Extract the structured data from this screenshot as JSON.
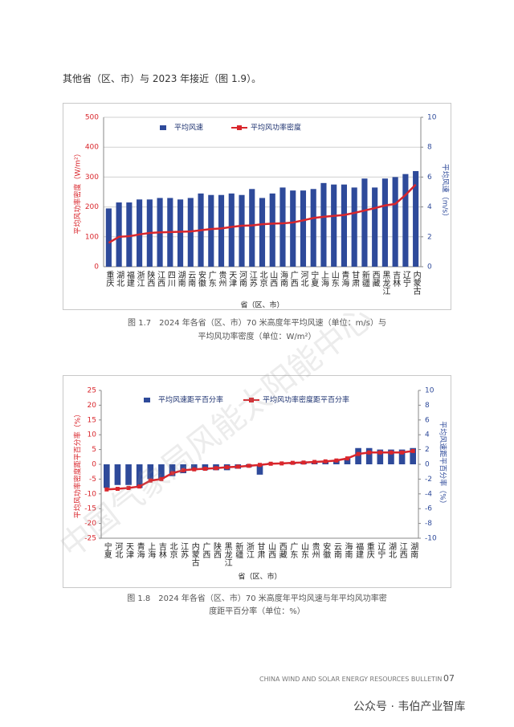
{
  "document": {
    "intro": "其他省（区、市）与 2023 年接近（图 1.9）。",
    "figures": [
      {
        "caption": [
          "图 1.7　2024 年各省（区、市）70 米高度年平均风速（单位：m/s）与",
          "平均风功率密度（单位：W/m²）"
        ]
      },
      {
        "caption": [
          "图 1.8　2024 年各省（区、市）70 米高度年平均风速与年平均风功率密",
          "度距平百分率（单位：%）"
        ]
      }
    ],
    "footer": {
      "bulletin": "CHINA WIND AND SOLAR ENERGY RESOURCES BULLETIN",
      "page": "07"
    },
    "watermark": "中国气象局风能太阳能中心",
    "overlay": "公众号 · 韦伯产业智库"
  },
  "chart_data": [
    {
      "type": "combo",
      "x_label": "省（区、市）",
      "y_label": "平均风功率密度（W/m²）",
      "y2_label": "平均风速（m/s）",
      "grid": true,
      "categories": [
        "重庆",
        "湖北",
        "福建",
        "浙江",
        "陕西",
        "江西",
        "四川",
        "湖南",
        "云南",
        "安徽",
        "广东",
        "贵州",
        "天津",
        "河南",
        "江苏",
        "北京",
        "山西",
        "海南",
        "广西",
        "河北",
        "宁夏",
        "上海",
        "山东",
        "青海",
        "甘肃",
        "新疆",
        "西藏",
        "黑龙江",
        "吉林",
        "辽宁",
        "内蒙古"
      ],
      "series": [
        {
          "name": "平均风速",
          "type": "bar",
          "axis": "y2",
          "color": "#2e4a9a",
          "values": [
            3.9,
            4.3,
            4.3,
            4.5,
            4.5,
            4.6,
            4.6,
            4.5,
            4.6,
            4.9,
            4.8,
            4.8,
            4.9,
            4.8,
            5.2,
            4.6,
            4.9,
            5.3,
            5.1,
            5.1,
            5.2,
            5.6,
            5.5,
            5.5,
            5.3,
            5.9,
            5.3,
            5.9,
            6.0,
            6.2,
            6.4
          ]
        },
        {
          "name": "平均风功率密度",
          "type": "line",
          "color": "#d9262c",
          "values": [
            80,
            100,
            102,
            108,
            113,
            115,
            116,
            117,
            118,
            122,
            126,
            128,
            133,
            137,
            138,
            142,
            144,
            145,
            148,
            155,
            163,
            167,
            170,
            173,
            180,
            188,
            196,
            205,
            210,
            240,
            275
          ]
        }
      ],
      "ylim": [
        0,
        500
      ],
      "yticks": [
        0,
        100,
        200,
        300,
        400,
        500
      ],
      "y2lim": [
        0,
        10
      ],
      "y2ticks": [
        0,
        2,
        4,
        6,
        8,
        10
      ]
    },
    {
      "type": "combo",
      "x_label": "省（区、市）",
      "y_label": "平均风功率密度距平百分率（%）",
      "y2_label": "平均风速距平百分率（%）",
      "grid": false,
      "categories": [
        "宁夏",
        "河北",
        "天津",
        "青海",
        "上海",
        "吉林",
        "北京",
        "江苏",
        "内蒙古",
        "广西",
        "陕西",
        "黑龙江",
        "新疆",
        "浙江",
        "甘肃",
        "山西",
        "西藏",
        "广东",
        "山东",
        "贵州",
        "安徽",
        "云南",
        "海南",
        "福建",
        "重庆",
        "辽宁",
        "湖北",
        "江西",
        "湖南"
      ],
      "series": [
        {
          "name": "平均风速距平百分率",
          "type": "bar",
          "axis": "y2",
          "color": "#2e4a9a",
          "values": [
            -3.2,
            -2.8,
            -2.8,
            -3.2,
            -2.0,
            -2.0,
            -1.6,
            -1.2,
            -0.8,
            -0.8,
            -0.8,
            -0.8,
            -0.6,
            -0.4,
            -1.4,
            0.2,
            0.2,
            0.2,
            0.4,
            0.4,
            0.4,
            0.6,
            0.8,
            2.2,
            2.2,
            2.0,
            2.0,
            2.0,
            2.2
          ]
        },
        {
          "name": "平均风功率密度距平百分率",
          "type": "line",
          "color": "#d9262c",
          "values": [
            -8.5,
            -8.3,
            -8,
            -7.5,
            -5.5,
            -5,
            -3,
            -2,
            -1.7,
            -1.5,
            -1.3,
            -1,
            -0.8,
            -0.5,
            -0.2,
            0.2,
            0.3,
            0.5,
            0.6,
            0.8,
            1,
            1.3,
            2,
            3.5,
            4,
            4,
            4,
            4,
            4.5
          ]
        }
      ],
      "ylim": [
        -25,
        25
      ],
      "yticks": [
        -25,
        -20,
        -15,
        -10,
        -5,
        0,
        5,
        10,
        15,
        20,
        25
      ],
      "y2lim": [
        -10,
        10
      ],
      "y2ticks": [
        -10,
        -8,
        -6,
        -4,
        -2,
        0,
        2,
        4,
        6,
        8,
        10
      ]
    }
  ]
}
